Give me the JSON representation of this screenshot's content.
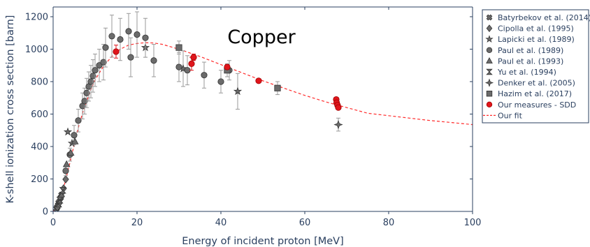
{
  "chart_data": {
    "type": "scatter",
    "xlabel": "Energy of incident proton [MeV]",
    "ylabel": "K-shell ionization cross section [barn]",
    "xlim": [
      0,
      100
    ],
    "ylim": [
      0,
      1260
    ],
    "x_ticks": [
      0,
      20,
      40,
      60,
      80,
      100
    ],
    "y_ticks": [
      0,
      200,
      400,
      600,
      800,
      1000,
      1200
    ],
    "grid": false,
    "legend_position": "right",
    "annotations": [
      {
        "text": "Copper",
        "x": 43,
        "y": 1080
      }
    ],
    "colors": {
      "grey_markers": "#6b6b6b",
      "marker_edge": "#333333",
      "measures": "#e0151b",
      "fit": "#ff2b2b",
      "errorbars": "#9a9a9a",
      "axis": "#2a3f5f"
    },
    "series": [
      {
        "name": "Batyrbekov et al. (2014)",
        "marker": "x-thin",
        "color": "#6b6b6b",
        "points": [
          [
            0.8,
            18
          ],
          [
            1.0,
            28
          ],
          [
            1.2,
            40
          ],
          [
            1.5,
            60
          ],
          [
            1.8,
            85
          ],
          [
            2.0,
            102
          ]
        ]
      },
      {
        "name": "Cipolla et al. (1995)",
        "marker": "diamond",
        "color": "#6b6b6b",
        "points": [
          [
            1.0,
            25
          ],
          [
            1.5,
            52
          ],
          [
            2.0,
            92
          ],
          [
            2.5,
            142
          ],
          [
            3.0,
            198
          ]
        ]
      },
      {
        "name": "Lapicki et al. (1989)",
        "marker": "star",
        "color": "#6b6b6b",
        "points": [
          [
            3.5,
            490
          ],
          [
            4.5,
            420
          ],
          [
            22,
            1010
          ],
          [
            31,
            880
          ],
          [
            44,
            740
          ]
        ],
        "errors": [
          0,
          0,
          60,
          110,
          110
        ]
      },
      {
        "name": "Paul et al. (1989)",
        "marker": "circle",
        "color": "#6b6b6b",
        "points": [
          [
            3,
            250
          ],
          [
            4,
            350
          ],
          [
            5,
            470
          ],
          [
            6,
            560
          ],
          [
            7,
            650
          ],
          [
            7.5,
            680
          ],
          [
            8,
            730
          ],
          [
            8.5,
            770
          ],
          [
            9,
            800
          ],
          [
            9.5,
            835
          ],
          [
            10,
            870
          ],
          [
            11,
            900
          ],
          [
            12,
            920
          ],
          [
            12.5,
            1010
          ],
          [
            14,
            1080
          ],
          [
            16,
            1060
          ],
          [
            18,
            1110
          ],
          [
            18.5,
            950
          ],
          [
            20,
            1090
          ],
          [
            22,
            1070
          ],
          [
            24,
            930
          ],
          [
            30,
            890
          ],
          [
            32,
            870
          ],
          [
            36,
            840
          ],
          [
            40,
            800
          ],
          [
            42,
            870
          ]
        ],
        "errors": [
          30,
          40,
          60,
          70,
          80,
          80,
          90,
          90,
          100,
          100,
          100,
          100,
          110,
          120,
          130,
          130,
          110,
          120,
          140,
          120,
          100,
          90,
          90,
          80,
          70,
          60
        ]
      },
      {
        "name": "Paul et al. (1993)",
        "marker": "triangle-up",
        "color": "#6b6b6b",
        "points": [
          [
            3.2,
            290
          ],
          [
            4.2,
            360
          ],
          [
            5.2,
            430
          ]
        ]
      },
      {
        "name": "Yu et al. (1994)",
        "marker": "hourglass",
        "color": "#6b6b6b",
        "points": [
          [
            1.3,
            45
          ],
          [
            1.6,
            70
          ],
          [
            2.3,
            130
          ]
        ]
      },
      {
        "name": "Denker et al. (2005)",
        "marker": "star-diamond",
        "color": "#6b6b6b",
        "points": [
          [
            68,
            535
          ]
        ],
        "errors": [
          40
        ]
      },
      {
        "name": "Hazim et al. (2017)",
        "marker": "square",
        "color": "#6b6b6b",
        "points": [
          [
            30,
            1010
          ],
          [
            41.5,
            870
          ],
          [
            53.5,
            760
          ]
        ],
        "errors": [
          40,
          40,
          40
        ]
      },
      {
        "name": "Our measures - SDD",
        "marker": "circle",
        "color": "#e0151b",
        "points": [
          [
            15,
            985
          ],
          [
            33,
            910
          ],
          [
            33.5,
            950
          ],
          [
            41.5,
            890
          ],
          [
            49,
            805
          ],
          [
            67.5,
            690
          ],
          [
            67.6,
            670
          ],
          [
            67.8,
            655
          ],
          [
            68,
            640
          ]
        ],
        "errors": [
          40,
          40,
          20,
          15,
          10,
          10,
          10,
          10,
          10
        ]
      },
      {
        "name": "Our fit",
        "marker": "line-dash",
        "color": "#ff2b2b",
        "points": [
          [
            0,
            0
          ],
          [
            1,
            30
          ],
          [
            2,
            100
          ],
          [
            3,
            195
          ],
          [
            4,
            300
          ],
          [
            5,
            410
          ],
          [
            6,
            515
          ],
          [
            7,
            605
          ],
          [
            8,
            680
          ],
          [
            9,
            750
          ],
          [
            10,
            810
          ],
          [
            12,
            895
          ],
          [
            14,
            955
          ],
          [
            16,
            1000
          ],
          [
            18,
            1025
          ],
          [
            20,
            1035
          ],
          [
            22,
            1040
          ],
          [
            24,
            1038
          ],
          [
            26,
            1030
          ],
          [
            30,
            1000
          ],
          [
            35,
            955
          ],
          [
            40,
            905
          ],
          [
            45,
            855
          ],
          [
            50,
            805
          ],
          [
            55,
            760
          ],
          [
            60,
            715
          ],
          [
            65,
            675
          ],
          [
            70,
            640
          ],
          [
            75,
            605
          ],
          [
            80,
            590
          ],
          [
            85,
            575
          ],
          [
            90,
            560
          ],
          [
            95,
            548
          ],
          [
            100,
            535
          ]
        ]
      }
    ]
  }
}
